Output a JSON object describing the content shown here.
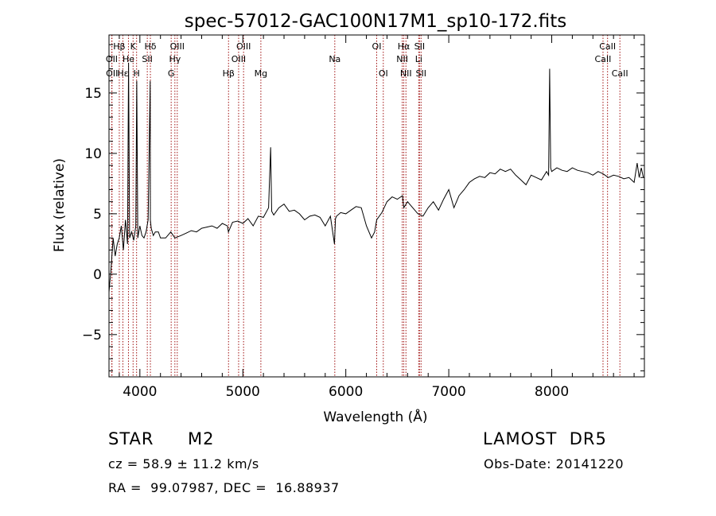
{
  "chart_data": {
    "type": "line",
    "title": "spec-57012-GAC100N17M1_sp10-172.fits",
    "xlabel": "Wavelength (Å)",
    "ylabel": "Flux (relative)",
    "xlim": [
      3700,
      8900
    ],
    "ylim": [
      -8.5,
      19.8
    ],
    "x_ticks": [
      4000,
      5000,
      6000,
      7000,
      8000
    ],
    "y_ticks": [
      -5,
      0,
      5,
      10,
      15
    ],
    "grid": false,
    "series": [
      {
        "x": [
          3700,
          3720,
          3740,
          3760,
          3780,
          3800,
          3820,
          3840,
          3860,
          3880,
          3890,
          3900,
          3920,
          3940,
          3960,
          3970,
          3980,
          4000,
          4020,
          4040,
          4060,
          4080,
          4100,
          4102,
          4110,
          4130,
          4150,
          4180,
          4200,
          4250,
          4300,
          4340,
          4400,
          4450,
          4500,
          4550,
          4600,
          4650,
          4700,
          4750,
          4800,
          4850,
          4860,
          4900,
          4950,
          5000,
          5050,
          5100,
          5150,
          5200,
          5250,
          5270,
          5280,
          5300,
          5350,
          5400,
          5450,
          5500,
          5550,
          5600,
          5650,
          5700,
          5750,
          5800,
          5850,
          5890,
          5900,
          5910,
          5950,
          6000,
          6050,
          6100,
          6150,
          6200,
          6250,
          6280,
          6300,
          6350,
          6400,
          6450,
          6500,
          6550,
          6563,
          6600,
          6650,
          6700,
          6750,
          6800,
          6850,
          6900,
          6950,
          7000,
          7050,
          7100,
          7150,
          7200,
          7250,
          7300,
          7350,
          7400,
          7450,
          7500,
          7550,
          7600,
          7650,
          7700,
          7750,
          7800,
          7850,
          7900,
          7950,
          7970,
          7980,
          7990,
          8000,
          8050,
          8100,
          8150,
          8200,
          8250,
          8300,
          8350,
          8400,
          8450,
          8500,
          8550,
          8600,
          8650,
          8700,
          8750,
          8800,
          8830,
          8850,
          8870,
          8890
        ],
        "y": [
          -1.5,
          0.5,
          3.0,
          1.5,
          2.5,
          3.0,
          4.0,
          2.0,
          4.5,
          2.5,
          17.5,
          3.0,
          3.5,
          2.8,
          4.0,
          16.0,
          3.0,
          4.0,
          3.2,
          3.0,
          3.5,
          4.5,
          16.0,
          4.5,
          3.8,
          3.2,
          3.5,
          3.5,
          3.0,
          3.0,
          3.5,
          3.0,
          3.2,
          3.4,
          3.6,
          3.5,
          3.8,
          3.9,
          4.0,
          3.8,
          4.2,
          4.0,
          3.5,
          4.3,
          4.4,
          4.2,
          4.6,
          4.0,
          4.8,
          4.7,
          5.5,
          10.5,
          5.2,
          4.9,
          5.5,
          5.8,
          5.2,
          5.3,
          5.0,
          4.5,
          4.8,
          4.9,
          4.7,
          4.0,
          4.8,
          2.5,
          4.6,
          4.8,
          5.1,
          5.0,
          5.3,
          5.6,
          5.5,
          4.0,
          3.0,
          3.5,
          4.5,
          5.1,
          6.0,
          6.4,
          6.2,
          6.5,
          5.5,
          6.0,
          5.5,
          5.0,
          4.8,
          5.5,
          6.0,
          5.3,
          6.2,
          7.0,
          5.5,
          6.5,
          7.0,
          7.6,
          7.9,
          8.1,
          8.0,
          8.4,
          8.3,
          8.7,
          8.5,
          8.7,
          8.2,
          7.8,
          7.4,
          8.2,
          8.0,
          7.8,
          8.5,
          8.2,
          17.0,
          8.8,
          8.5,
          8.8,
          8.6,
          8.5,
          8.8,
          8.6,
          8.5,
          8.4,
          8.2,
          8.5,
          8.3,
          8.0,
          8.2,
          8.1,
          7.9,
          8.0,
          7.6,
          9.2,
          8.0,
          8.8,
          8.0
        ]
      }
    ],
    "line_markers": {
      "top_row": [
        {
          "label": "Hβ",
          "x": 3800
        },
        {
          "label": "K",
          "x": 3934
        },
        {
          "label": "Hδ",
          "x": 4102
        },
        {
          "label": "OIII",
          "x": 4363
        },
        {
          "label": "OIII",
          "x": 5007
        },
        {
          "label": "OI",
          "x": 6300
        },
        {
          "label": "Hα",
          "x": 6563
        },
        {
          "label": "SII",
          "x": 6716
        },
        {
          "label": "CaII",
          "x": 8542
        }
      ],
      "middle_row": [
        {
          "label": "OII",
          "x": 3727
        },
        {
          "label": "He",
          "x": 3889
        },
        {
          "label": "SII",
          "x": 4072
        },
        {
          "label": "Hγ",
          "x": 4340
        },
        {
          "label": "OIII",
          "x": 4959
        },
        {
          "label": "Na",
          "x": 5893
        },
        {
          "label": "NII",
          "x": 6548
        },
        {
          "label": "Li",
          "x": 6708
        },
        {
          "label": "CaII",
          "x": 8498
        }
      ],
      "bottom_row": [
        {
          "label": "OII",
          "x": 3729
        },
        {
          "label": "Hε",
          "x": 3835
        },
        {
          "label": "H",
          "x": 3968
        },
        {
          "label": "G",
          "x": 4304
        },
        {
          "label": "Hβ",
          "x": 4861
        },
        {
          "label": "Mg",
          "x": 5175
        },
        {
          "label": "OI",
          "x": 6364
        },
        {
          "label": "NII",
          "x": 6584
        },
        {
          "label": "SII",
          "x": 6731
        },
        {
          "label": "CaII",
          "x": 8662
        }
      ],
      "line_x": [
        3727,
        3729,
        3800,
        3835,
        3889,
        3934,
        3968,
        4072,
        4102,
        4304,
        4340,
        4363,
        4861,
        4959,
        5007,
        5175,
        5893,
        6300,
        6364,
        6548,
        6563,
        6584,
        6708,
        6716,
        6731,
        8498,
        8542,
        8662
      ]
    }
  },
  "info": {
    "class": "STAR",
    "subclass": "M2",
    "survey": "LAMOST  DR5",
    "cz": "cz = 58.9 ± 11.2 km/s",
    "obs_date": "Obs-Date: 20141220",
    "coords": "RA =  99.07987, DEC =  16.88937"
  }
}
